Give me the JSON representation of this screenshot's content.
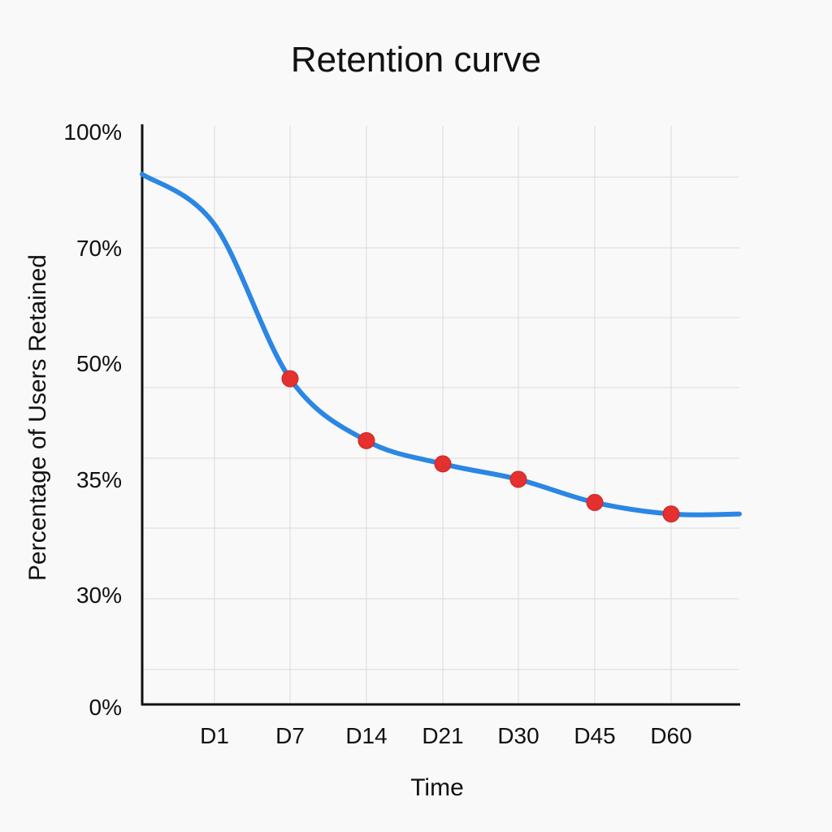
{
  "chart_data": {
    "type": "line",
    "title": "Retention curve",
    "xlabel": "Time",
    "ylabel": "Percentage of Users Retained",
    "x_tick_labels": [
      "D1",
      "D7",
      "D14",
      "D21",
      "D30",
      "D45",
      "D60"
    ],
    "y_tick_labels": [
      "100%",
      "70%",
      "50%",
      "35%",
      "30%",
      "0%"
    ],
    "y_scale": "categorical-band",
    "grid": true,
    "legend": "none",
    "series": [
      {
        "color": "#2b86e4",
        "curve_values": [
          {
            "x": "D0",
            "y": 89
          },
          {
            "x": "D1",
            "y": 76
          },
          {
            "x": "D7",
            "y": 48
          },
          {
            "x": "D14",
            "y": 40
          },
          {
            "x": "D21",
            "y": 37
          },
          {
            "x": "D30",
            "y": 35
          },
          {
            "x": "D45",
            "y": 34
          },
          {
            "x": "D60",
            "y": 33.5
          },
          {
            "x": "end",
            "y": 33.5
          }
        ]
      }
    ],
    "markers": {
      "color": "#e53030",
      "points": [
        {
          "x": "D7",
          "y": 48
        },
        {
          "x": "D14",
          "y": 40
        },
        {
          "x": "D21",
          "y": 37
        },
        {
          "x": "D30",
          "y": 35
        },
        {
          "x": "D45",
          "y": 34
        },
        {
          "x": "D60",
          "y": 33.5
        }
      ]
    }
  }
}
